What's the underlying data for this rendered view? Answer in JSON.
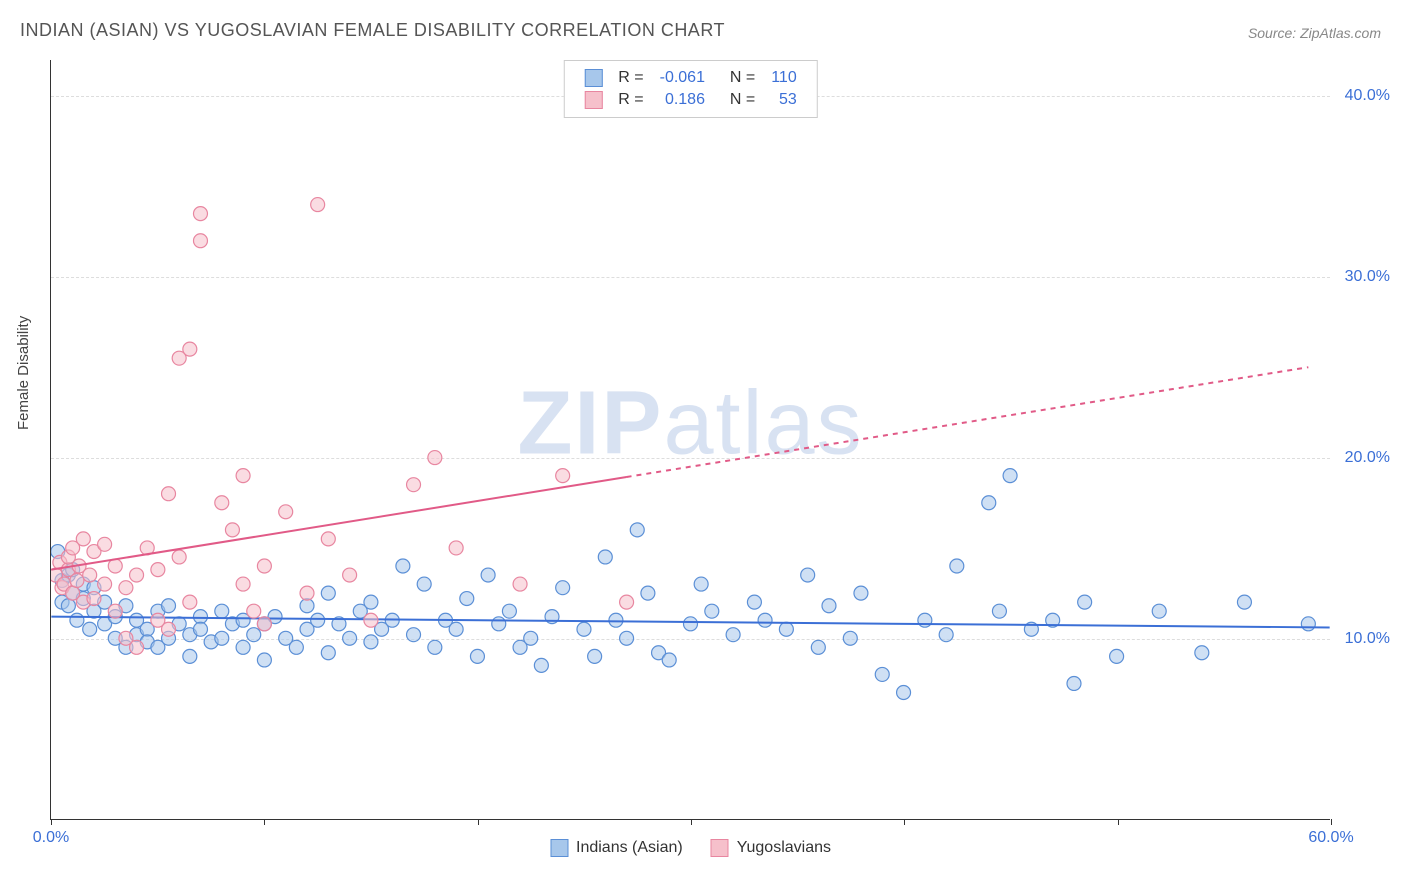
{
  "title": "INDIAN (ASIAN) VS YUGOSLAVIAN FEMALE DISABILITY CORRELATION CHART",
  "source": "Source: ZipAtlas.com",
  "y_axis_label": "Female Disability",
  "watermark_left": "ZIP",
  "watermark_right": "atlas",
  "chart": {
    "type": "scatter",
    "xlim": [
      0,
      60
    ],
    "ylim": [
      0,
      42
    ],
    "x_ticks": [
      0,
      10,
      20,
      30,
      40,
      50,
      60
    ],
    "x_tick_labels": {
      "0": "0.0%",
      "60": "60.0%"
    },
    "y_gridlines": [
      10,
      20,
      30,
      40
    ],
    "y_tick_labels": {
      "10": "10.0%",
      "20": "20.0%",
      "30": "30.0%",
      "40": "40.0%"
    },
    "grid_color": "#dddddd",
    "axis_color": "#333333",
    "tick_label_color": "#3b6fd6",
    "background_color": "#ffffff",
    "marker_radius": 7,
    "marker_stroke_width": 1.2,
    "trendline_width": 2,
    "trendline_dash": "5,5"
  },
  "series": [
    {
      "key": "indians",
      "label": "Indians (Asian)",
      "fill": "#a7c7eb",
      "stroke": "#5b8fd6",
      "fill_opacity": 0.55,
      "R": "-0.061",
      "N": "110",
      "trend": {
        "x1": 0,
        "y1": 11.2,
        "x2": 60,
        "y2": 10.6,
        "solid_to_x": 60,
        "color": "#3b6fd6"
      },
      "points": [
        [
          0.3,
          14.8
        ],
        [
          0.5,
          13.2
        ],
        [
          0.5,
          12.0
        ],
        [
          0.8,
          13.5
        ],
        [
          0.8,
          11.8
        ],
        [
          1.0,
          12.5
        ],
        [
          1.0,
          13.8
        ],
        [
          1.2,
          11.0
        ],
        [
          1.5,
          12.2
        ],
        [
          1.5,
          13.0
        ],
        [
          1.8,
          10.5
        ],
        [
          2.0,
          12.8
        ],
        [
          2.0,
          11.5
        ],
        [
          2.5,
          10.8
        ],
        [
          2.5,
          12.0
        ],
        [
          3.0,
          11.2
        ],
        [
          3.0,
          10.0
        ],
        [
          3.5,
          9.5
        ],
        [
          3.5,
          11.8
        ],
        [
          4.0,
          10.2
        ],
        [
          4.0,
          11.0
        ],
        [
          4.5,
          10.5
        ],
        [
          4.5,
          9.8
        ],
        [
          5.0,
          11.5
        ],
        [
          5.0,
          9.5
        ],
        [
          5.5,
          10.0
        ],
        [
          5.5,
          11.8
        ],
        [
          6.0,
          10.8
        ],
        [
          6.5,
          10.2
        ],
        [
          6.5,
          9.0
        ],
        [
          7.0,
          11.2
        ],
        [
          7.0,
          10.5
        ],
        [
          7.5,
          9.8
        ],
        [
          8.0,
          10.0
        ],
        [
          8.0,
          11.5
        ],
        [
          8.5,
          10.8
        ],
        [
          9.0,
          9.5
        ],
        [
          9.0,
          11.0
        ],
        [
          9.5,
          10.2
        ],
        [
          10.0,
          10.8
        ],
        [
          10.0,
          8.8
        ],
        [
          10.5,
          11.2
        ],
        [
          11.0,
          10.0
        ],
        [
          11.5,
          9.5
        ],
        [
          12.0,
          10.5
        ],
        [
          12.0,
          11.8
        ],
        [
          12.5,
          11.0
        ],
        [
          13.0,
          12.5
        ],
        [
          13.0,
          9.2
        ],
        [
          13.5,
          10.8
        ],
        [
          14.0,
          10.0
        ],
        [
          14.5,
          11.5
        ],
        [
          15.0,
          9.8
        ],
        [
          15.0,
          12.0
        ],
        [
          15.5,
          10.5
        ],
        [
          16.0,
          11.0
        ],
        [
          16.5,
          14.0
        ],
        [
          17.0,
          10.2
        ],
        [
          17.5,
          13.0
        ],
        [
          18.0,
          9.5
        ],
        [
          18.5,
          11.0
        ],
        [
          19.0,
          10.5
        ],
        [
          19.5,
          12.2
        ],
        [
          20.0,
          9.0
        ],
        [
          20.5,
          13.5
        ],
        [
          21.0,
          10.8
        ],
        [
          21.5,
          11.5
        ],
        [
          22.0,
          9.5
        ],
        [
          22.5,
          10.0
        ],
        [
          23.0,
          8.5
        ],
        [
          23.5,
          11.2
        ],
        [
          24.0,
          12.8
        ],
        [
          25.0,
          10.5
        ],
        [
          25.5,
          9.0
        ],
        [
          26.0,
          14.5
        ],
        [
          26.5,
          11.0
        ],
        [
          27.0,
          10.0
        ],
        [
          27.5,
          16.0
        ],
        [
          28.0,
          12.5
        ],
        [
          28.5,
          9.2
        ],
        [
          29.0,
          8.8
        ],
        [
          30.0,
          10.8
        ],
        [
          30.5,
          13.0
        ],
        [
          31.0,
          11.5
        ],
        [
          32.0,
          10.2
        ],
        [
          33.0,
          12.0
        ],
        [
          33.5,
          11.0
        ],
        [
          34.5,
          10.5
        ],
        [
          35.5,
          13.5
        ],
        [
          36.0,
          9.5
        ],
        [
          36.5,
          11.8
        ],
        [
          37.5,
          10.0
        ],
        [
          38.0,
          12.5
        ],
        [
          39.0,
          8.0
        ],
        [
          40.0,
          7.0
        ],
        [
          41.0,
          11.0
        ],
        [
          42.0,
          10.2
        ],
        [
          42.5,
          14.0
        ],
        [
          44.0,
          17.5
        ],
        [
          44.5,
          11.5
        ],
        [
          45.0,
          19.0
        ],
        [
          46.0,
          10.5
        ],
        [
          47.0,
          11.0
        ],
        [
          48.0,
          7.5
        ],
        [
          48.5,
          12.0
        ],
        [
          50.0,
          9.0
        ],
        [
          52.0,
          11.5
        ],
        [
          54.0,
          9.2
        ],
        [
          56.0,
          12.0
        ],
        [
          59.0,
          10.8
        ]
      ]
    },
    {
      "key": "yugoslavians",
      "label": "Yugoslavians",
      "fill": "#f6c0cb",
      "stroke": "#e886a0",
      "fill_opacity": 0.55,
      "R": "0.186",
      "N": "53",
      "trend": {
        "x1": 0,
        "y1": 13.8,
        "x2": 59,
        "y2": 25.0,
        "solid_to_x": 27,
        "color": "#e15a87"
      },
      "points": [
        [
          0.2,
          13.5
        ],
        [
          0.4,
          14.2
        ],
        [
          0.5,
          12.8
        ],
        [
          0.6,
          13.0
        ],
        [
          0.8,
          13.8
        ],
        [
          0.8,
          14.5
        ],
        [
          1.0,
          12.5
        ],
        [
          1.0,
          15.0
        ],
        [
          1.2,
          13.2
        ],
        [
          1.3,
          14.0
        ],
        [
          1.5,
          15.5
        ],
        [
          1.5,
          12.0
        ],
        [
          1.8,
          13.5
        ],
        [
          2.0,
          14.8
        ],
        [
          2.0,
          12.2
        ],
        [
          2.5,
          13.0
        ],
        [
          2.5,
          15.2
        ],
        [
          3.0,
          14.0
        ],
        [
          3.0,
          11.5
        ],
        [
          3.5,
          10.0
        ],
        [
          3.5,
          12.8
        ],
        [
          4.0,
          13.5
        ],
        [
          4.0,
          9.5
        ],
        [
          4.5,
          15.0
        ],
        [
          5.0,
          11.0
        ],
        [
          5.0,
          13.8
        ],
        [
          5.5,
          18.0
        ],
        [
          5.5,
          10.5
        ],
        [
          6.0,
          14.5
        ],
        [
          6.0,
          25.5
        ],
        [
          6.5,
          26.0
        ],
        [
          6.5,
          12.0
        ],
        [
          7.0,
          32.0
        ],
        [
          7.0,
          33.5
        ],
        [
          8.0,
          17.5
        ],
        [
          8.5,
          16.0
        ],
        [
          9.0,
          19.0
        ],
        [
          9.0,
          13.0
        ],
        [
          9.5,
          11.5
        ],
        [
          10.0,
          14.0
        ],
        [
          10.0,
          10.8
        ],
        [
          11.0,
          17.0
        ],
        [
          12.0,
          12.5
        ],
        [
          12.5,
          34.0
        ],
        [
          13.0,
          15.5
        ],
        [
          14.0,
          13.5
        ],
        [
          15.0,
          11.0
        ],
        [
          17.0,
          18.5
        ],
        [
          18.0,
          20.0
        ],
        [
          19.0,
          15.0
        ],
        [
          22.0,
          13.0
        ],
        [
          24.0,
          19.0
        ],
        [
          27.0,
          12.0
        ]
      ]
    }
  ],
  "legend_bottom": [
    {
      "label": "Indians (Asian)",
      "fill": "#a7c7eb",
      "stroke": "#5b8fd6"
    },
    {
      "label": "Yugoslavians",
      "fill": "#f6c0cb",
      "stroke": "#e886a0"
    }
  ]
}
